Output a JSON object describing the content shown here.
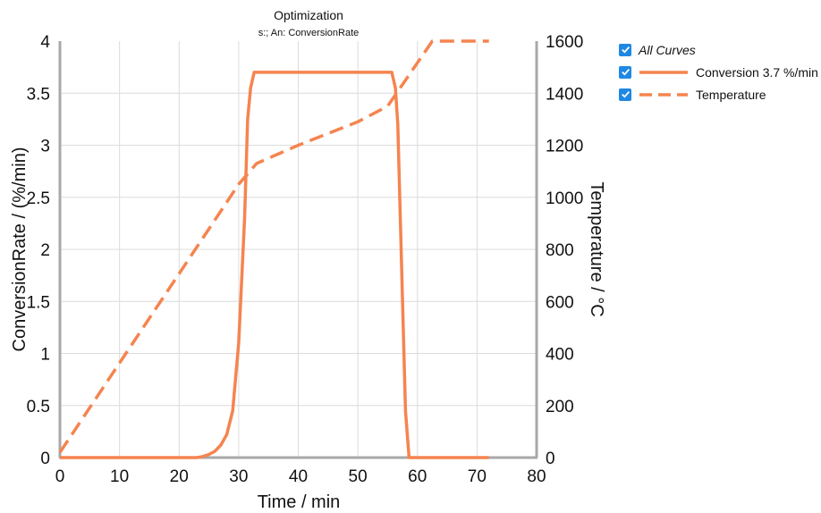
{
  "chart_data": {
    "type": "line",
    "title": "Optimization",
    "subtitle": "s:; An: ConversionRate",
    "xlabel": "Time / min",
    "ylabel": "ConversionRate / (%/min)",
    "y2label": "Temperature / °C",
    "xlim": [
      0,
      80
    ],
    "ylim": [
      0,
      4
    ],
    "y2lim": [
      0,
      1600
    ],
    "x_ticks": [
      "0",
      "10",
      "20",
      "30",
      "40",
      "50",
      "60",
      "70",
      "80"
    ],
    "y_ticks": [
      "0",
      "0.5",
      "1",
      "1.5",
      "2",
      "2.5",
      "3",
      "3.5",
      "4"
    ],
    "y2_ticks": [
      "0",
      "200",
      "400",
      "600",
      "800",
      "1000",
      "1200",
      "1400",
      "1600"
    ],
    "grid": true,
    "legend_position": "right",
    "series": [
      {
        "name": "Conversion 3.7 %/min",
        "axis": "left",
        "style": "solid",
        "color": "#f5844f",
        "x": [
          0,
          23,
          24,
          25,
          26,
          27,
          28,
          29,
          30,
          31,
          31.5,
          32,
          32.6,
          36,
          40,
          45,
          50,
          55.7,
          56.3,
          56.7,
          57.5,
          58,
          58.6,
          60,
          65,
          72
        ],
        "y": [
          0,
          0,
          0.01,
          0.03,
          0.06,
          0.12,
          0.22,
          0.45,
          1.1,
          2.3,
          3.25,
          3.55,
          3.7,
          3.7,
          3.7,
          3.7,
          3.7,
          3.7,
          3.55,
          3.2,
          1.5,
          0.45,
          0,
          0,
          0,
          0
        ]
      },
      {
        "name": "Temperature",
        "axis": "right",
        "style": "dashed",
        "color": "#f5844f",
        "x": [
          0,
          30,
          33,
          40,
          50,
          55,
          58,
          62.5,
          72
        ],
        "y": [
          20,
          1050,
          1130,
          1200,
          1290,
          1350,
          1450,
          1600,
          1600
        ]
      }
    ]
  },
  "legend": {
    "all_label": "All Curves",
    "all_checked": true,
    "items": [
      {
        "label": "Conversion 3.7 %/min",
        "checked": true
      },
      {
        "label": "Temperature",
        "checked": true
      }
    ]
  },
  "colors": {
    "curve": "#f5844f",
    "grid": "#dcdcdc",
    "axis": "#a8a8a8",
    "checkbox": "#1e88e5"
  }
}
